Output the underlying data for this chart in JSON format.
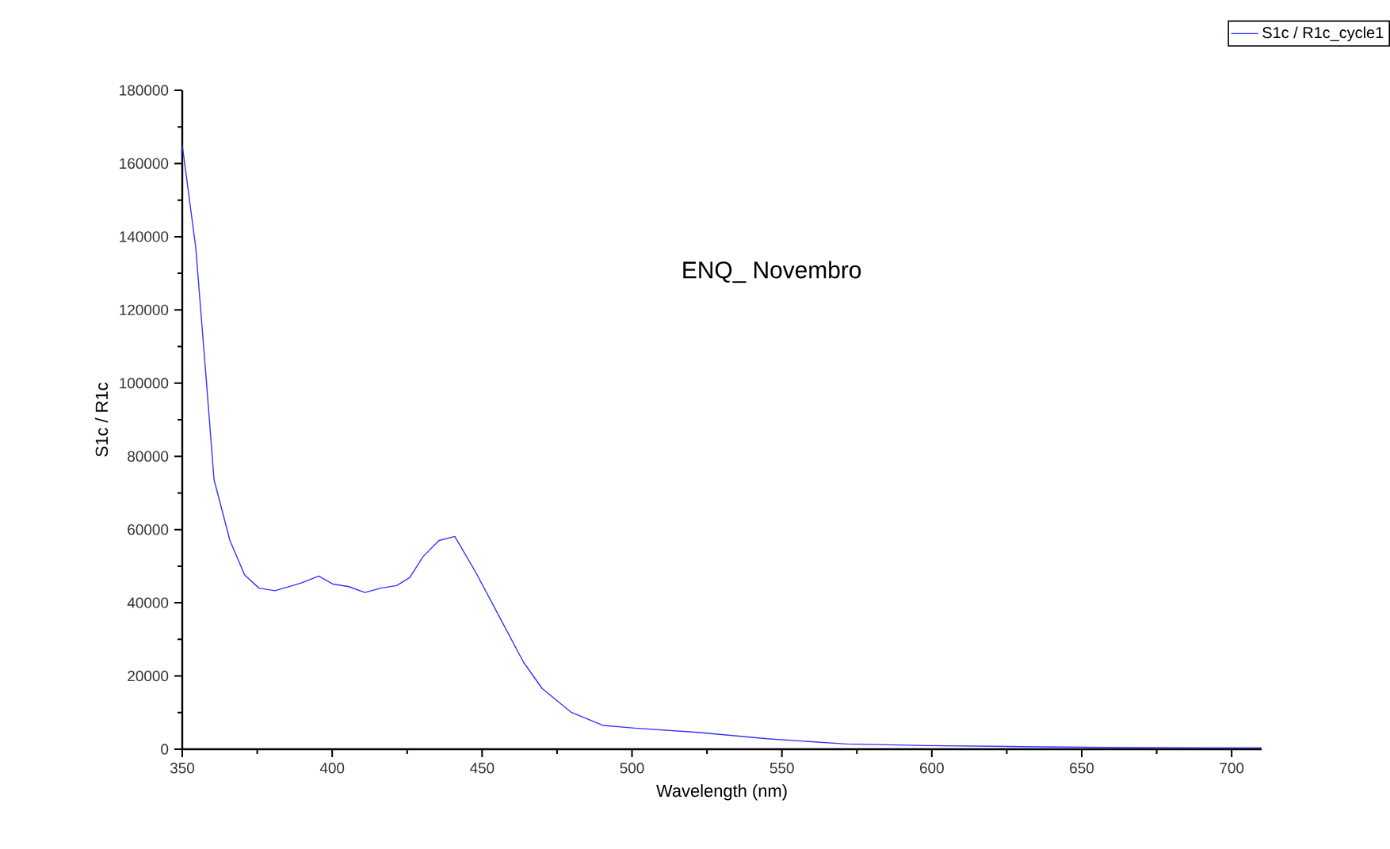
{
  "chart_data": {
    "type": "line",
    "title": "ENQ_ Novembro",
    "xlabel": "Wavelength (nm)",
    "ylabel": "S1c / R1c",
    "series": [
      {
        "name": "S1c / R1c_cycle1",
        "color": "#3333ff",
        "x": [
          350,
          354.5,
          358,
          360.6,
          365.9,
          370.8,
          375.6,
          380.9,
          389.7,
          395.5,
          400.3,
          405.6,
          410.9,
          416.2,
          421.5,
          425.9,
          430.3,
          435.6,
          440.9,
          447.9,
          456.8,
          463.8,
          470,
          479.7,
          490.3,
          500.9,
          522,
          545,
          571.5,
          598,
          630,
          658,
          690,
          710
        ],
        "values": [
          165000,
          137000,
          101000,
          73600,
          57000,
          47600,
          44000,
          43300,
          45400,
          47300,
          45100,
          44400,
          42800,
          44000,
          44700,
          46900,
          52600,
          57000,
          58100,
          48300,
          34600,
          23800,
          16600,
          10100,
          6500,
          5750,
          4600,
          2860,
          1430,
          1000,
          700,
          500,
          400,
          400
        ]
      }
    ],
    "xlim": [
      350,
      710
    ],
    "xticks": [
      350,
      400,
      450,
      500,
      550,
      600,
      650,
      700
    ],
    "ylim": [
      0,
      180000
    ],
    "yticks": [
      0,
      20000,
      40000,
      60000,
      80000,
      100000,
      120000,
      140000,
      160000,
      180000
    ],
    "grid": false,
    "legend": "top right",
    "marker": "none",
    "line_style": "solid"
  }
}
